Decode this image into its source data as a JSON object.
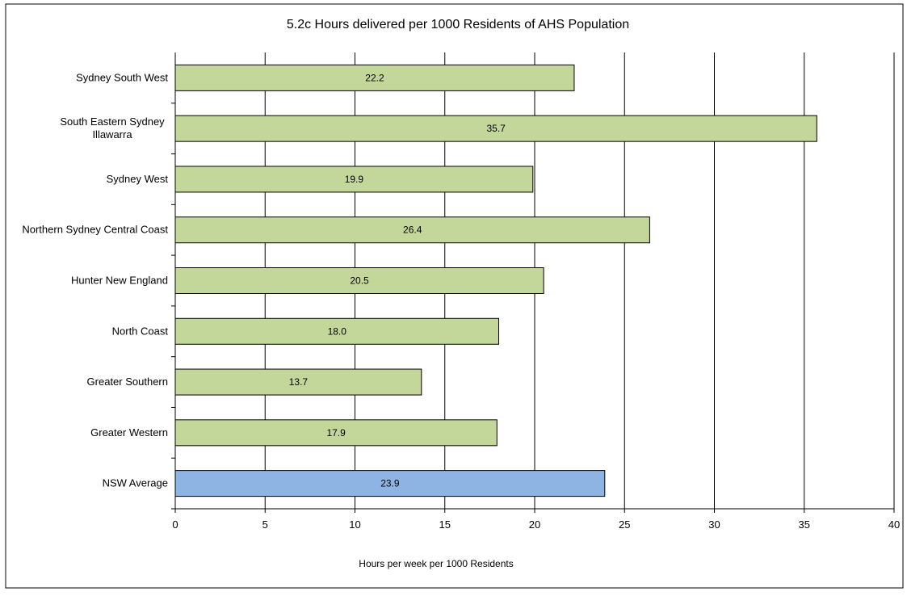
{
  "chart_data": {
    "type": "bar",
    "orientation": "horizontal",
    "title": "5.2c Hours delivered per 1000 Residents of AHS Population",
    "xlabel": "Hours per week per 1000 Residents",
    "ylabel": "",
    "xlim": [
      0,
      40
    ],
    "xticks": [
      0,
      5,
      10,
      15,
      20,
      25,
      30,
      35,
      40
    ],
    "xtick_labels": [
      "0",
      "5",
      "10",
      "15",
      "20",
      "25",
      "30",
      "35",
      "40"
    ],
    "grid": "vertical major gridlines",
    "legend": "none",
    "categories": [
      [
        "Sydney South West"
      ],
      [
        "South Eastern Sydney",
        "Illawarra"
      ],
      [
        "Sydney West"
      ],
      [
        "Northern Sydney Central Coast"
      ],
      [
        "Hunter New England"
      ],
      [
        "North Coast"
      ],
      [
        "Greater Southern"
      ],
      [
        "Greater Western"
      ],
      [
        "NSW Average"
      ]
    ],
    "values": [
      22.2,
      35.7,
      19.9,
      26.4,
      20.5,
      18.0,
      13.7,
      17.9,
      23.9
    ],
    "value_labels": [
      "22.2",
      "35.7",
      "19.9",
      "26.4",
      "20.5",
      "18.0",
      "13.7",
      "17.9",
      "23.9"
    ],
    "colors": [
      "#c4d79b",
      "#c4d79b",
      "#c4d79b",
      "#c4d79b",
      "#c4d79b",
      "#c4d79b",
      "#c4d79b",
      "#c4d79b",
      "#8db4e2"
    ],
    "bar_outline_color": "#000000",
    "gridline_color": "#000000"
  }
}
